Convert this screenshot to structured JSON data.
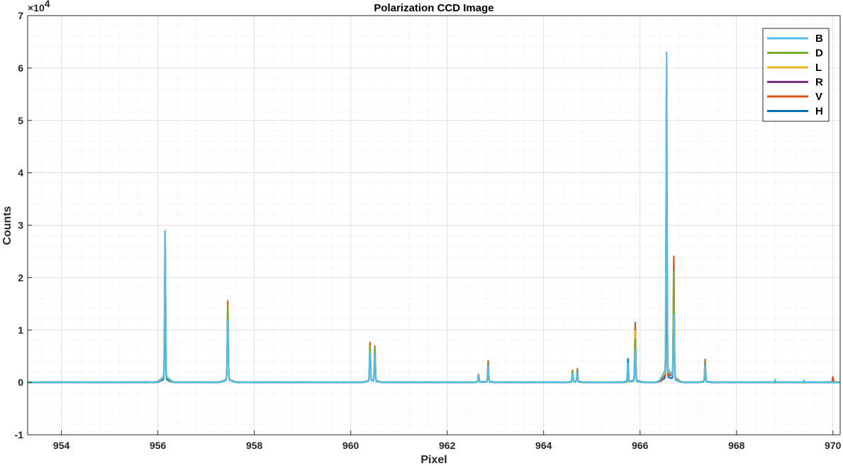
{
  "chart_data": {
    "type": "line",
    "title": "Polarization CCD Image",
    "xlabel": "Pixel",
    "ylabel": "Counts",
    "y_exponent_label": "×10",
    "y_exponent_power": "4",
    "xlim": [
      953.3,
      970.15
    ],
    "ylim": [
      -10000,
      70000
    ],
    "x_ticks": [
      954,
      956,
      958,
      960,
      962,
      964,
      966,
      968,
      970
    ],
    "x_tick_labels": [
      "954",
      "956",
      "958",
      "960",
      "962",
      "964",
      "966",
      "968",
      "970"
    ],
    "y_ticks": [
      -10000,
      0,
      10000,
      20000,
      30000,
      40000,
      50000,
      60000,
      70000
    ],
    "y_tick_labels": [
      "-1",
      "0",
      "1",
      "2",
      "3",
      "4",
      "5",
      "6",
      "7"
    ],
    "grid": true,
    "minor_grid": true,
    "legend_position": "top-right",
    "baseline": 0,
    "series": [
      {
        "name": "H",
        "color": "#0072BD",
        "peaks": [
          [
            956.15,
            14000
          ],
          [
            957.45,
            12500
          ],
          [
            960.4,
            5500
          ],
          [
            960.5,
            4500
          ],
          [
            962.65,
            1200
          ],
          [
            962.85,
            2500
          ],
          [
            964.6,
            1800
          ],
          [
            964.7,
            1800
          ],
          [
            965.75,
            4300
          ],
          [
            965.9,
            5500
          ],
          [
            966.55,
            22000
          ],
          [
            966.7,
            12000
          ],
          [
            967.35,
            2500
          ]
        ]
      },
      {
        "name": "V",
        "color": "#D95319",
        "peaks": [
          [
            956.15,
            27800
          ],
          [
            957.45,
            15000
          ],
          [
            960.4,
            7200
          ],
          [
            960.5,
            6500
          ],
          [
            962.65,
            1500
          ],
          [
            962.85,
            4000
          ],
          [
            964.6,
            2200
          ],
          [
            964.7,
            2500
          ],
          [
            965.75,
            1000
          ],
          [
            965.9,
            11000
          ],
          [
            966.55,
            30000
          ],
          [
            966.7,
            23000
          ],
          [
            967.35,
            4200
          ],
          [
            970.0,
            1000
          ]
        ]
      },
      {
        "name": "R",
        "color": "#7E2F8E",
        "peaks": [
          [
            956.15,
            26000
          ],
          [
            957.45,
            13000
          ],
          [
            960.4,
            6200
          ],
          [
            960.5,
            5800
          ],
          [
            962.65,
            1300
          ],
          [
            962.85,
            3000
          ],
          [
            964.6,
            2000
          ],
          [
            964.7,
            2200
          ],
          [
            965.75,
            1200
          ],
          [
            965.9,
            9000
          ],
          [
            966.55,
            40000
          ],
          [
            966.7,
            19000
          ],
          [
            967.35,
            3500
          ]
        ]
      },
      {
        "name": "L",
        "color": "#EDB120",
        "peaks": [
          [
            956.15,
            25000
          ],
          [
            957.45,
            13500
          ],
          [
            960.4,
            6000
          ],
          [
            960.5,
            6000
          ],
          [
            962.65,
            1400
          ],
          [
            962.85,
            3200
          ],
          [
            964.6,
            2000
          ],
          [
            964.7,
            2100
          ],
          [
            965.75,
            1500
          ],
          [
            965.9,
            9500
          ],
          [
            966.55,
            45000
          ],
          [
            966.7,
            20000
          ],
          [
            967.35,
            3600
          ]
        ]
      },
      {
        "name": "D",
        "color": "#77AC30",
        "peaks": [
          [
            956.15,
            21500
          ],
          [
            957.45,
            14000
          ],
          [
            960.4,
            6500
          ],
          [
            960.5,
            6200
          ],
          [
            962.65,
            1300
          ],
          [
            962.85,
            3500
          ],
          [
            964.6,
            2100
          ],
          [
            964.7,
            2200
          ],
          [
            965.75,
            1200
          ],
          [
            965.9,
            8000
          ],
          [
            966.55,
            58000
          ],
          [
            966.7,
            20000
          ],
          [
            967.35,
            3800
          ]
        ]
      },
      {
        "name": "B",
        "color": "#4DBEEE",
        "peaks": [
          [
            956.15,
            27800
          ],
          [
            957.45,
            11500
          ],
          [
            960.4,
            5500
          ],
          [
            960.5,
            5000
          ],
          [
            962.65,
            1200
          ],
          [
            962.85,
            2800
          ],
          [
            964.6,
            1700
          ],
          [
            964.7,
            1800
          ],
          [
            965.75,
            3500
          ],
          [
            965.9,
            6000
          ],
          [
            966.55,
            60500
          ],
          [
            966.7,
            12000
          ],
          [
            967.35,
            3000
          ],
          [
            968.8,
            500
          ],
          [
            969.4,
            400
          ]
        ]
      }
    ],
    "legend_order": [
      "B",
      "D",
      "L",
      "R",
      "V",
      "H"
    ]
  }
}
